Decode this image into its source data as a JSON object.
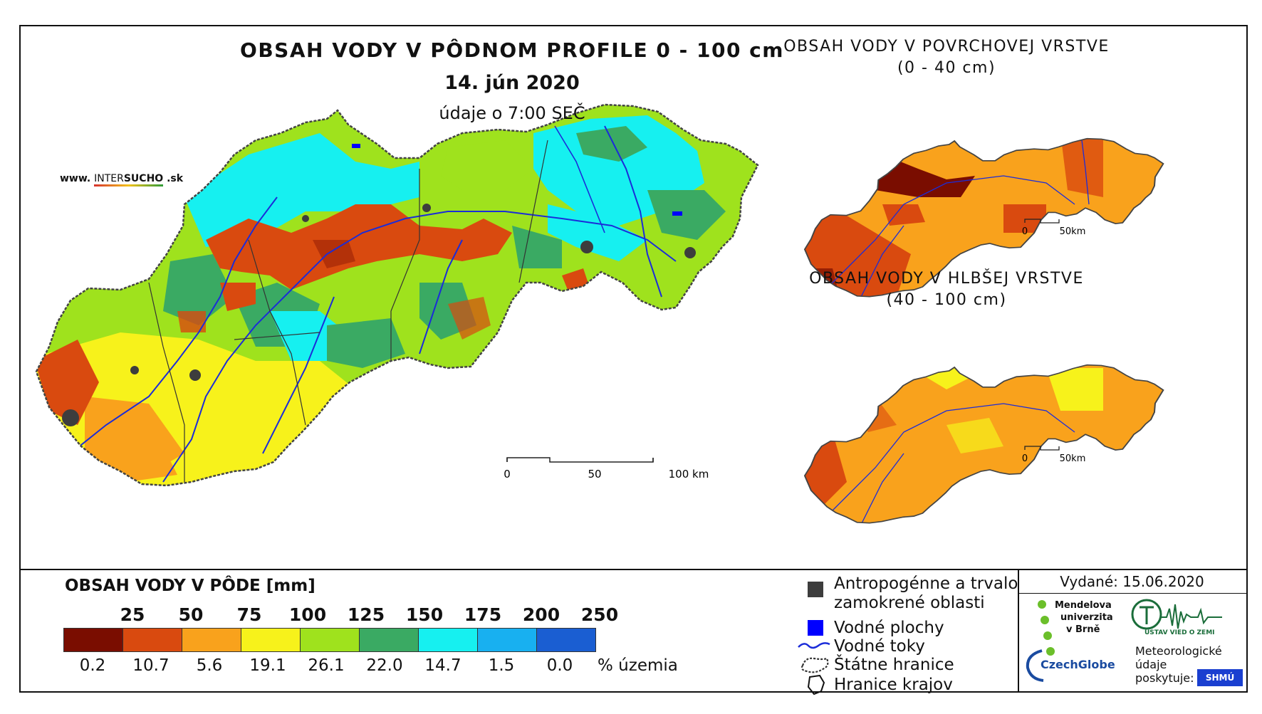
{
  "main": {
    "title": "OBSAH VODY V PÔDNOM PROFILE 0 - 100 cm",
    "date": "14. jún 2020",
    "time": "údaje o 7:00 SEČ",
    "site_prefix": "www.",
    "site_brand_a": "INTER",
    "site_brand_b": "SUCHO",
    "site_suffix": ".sk",
    "scale": {
      "labels": [
        "0",
        "50",
        "100 km"
      ]
    }
  },
  "surface": {
    "title_line1": "OBSAH VODY V POVRCHOVEJ VRSTVE",
    "title_line2": "(0 - 40 cm)",
    "scale": {
      "labels": [
        "0",
        "50km"
      ]
    }
  },
  "deep": {
    "title_line1": "OBSAH VODY V HLBŠEJ VRSTVE",
    "title_line2": "(40 - 100 cm)",
    "scale": {
      "labels": [
        "0",
        "50km"
      ]
    }
  },
  "legend": {
    "title": "OBSAH VODY V PÔDE [mm]",
    "thresholds": [
      "25",
      "50",
      "75",
      "100",
      "125",
      "150",
      "175",
      "200",
      "250"
    ],
    "colors": [
      "#7a0d00",
      "#d94a0f",
      "#f9a21c",
      "#f7f21b",
      "#9fe21d",
      "#3aaa63",
      "#16f0f0",
      "#18b0f0",
      "#1a5ed2"
    ],
    "percentages": [
      "0.2",
      "10.7",
      "5.6",
      "19.1",
      "26.1",
      "22.0",
      "14.7",
      "1.5",
      "0.0"
    ],
    "pct_unit": "% územia"
  },
  "key": {
    "anthropogenic_line1": "Antropogénne a trvalo",
    "anthropogenic_line2": "zamokrené oblasti",
    "water_areas": "Vodné plochy",
    "streams": "Vodné toky",
    "state_border": "Štátne hranice",
    "region_border": "Hranice krajov",
    "anthropogenic_color": "#3d3d3d",
    "water_color": "#0000ff",
    "stream_color": "#1b2cd9"
  },
  "credits": {
    "issued": "Vydané: 15.06.2020",
    "mendel_line1": "Mendelova",
    "mendel_line2": "univerzita",
    "mendel_line3": "v Brně",
    "czechglobe": "CzechGlobe",
    "ustav": "ÚSTAV VIED O ZEMI",
    "met_line1": "Meteorologické",
    "met_line2": "údaje",
    "met_line3": "poskytuje:",
    "shmu": "SHMÚ"
  }
}
